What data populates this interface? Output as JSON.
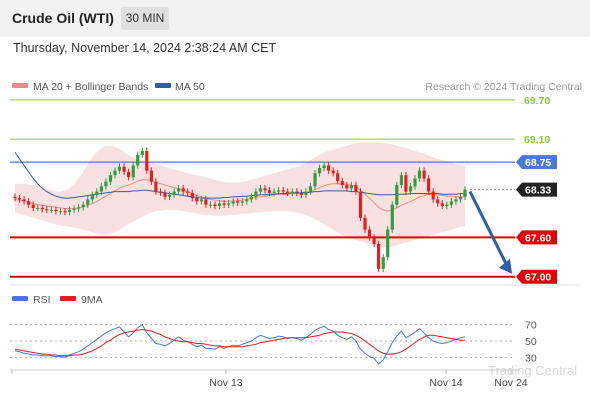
{
  "header": {
    "title": "Crude Oil (WTI)",
    "timeframe": "30 MIN",
    "datetime": "Thursday, November 14, 2024 2:38:24 AM CET"
  },
  "legend": {
    "ma20_label": "MA 20 + Bollinger Bands",
    "ma50_label": "MA 50",
    "credit": "Research © 2024 Trading Central",
    "ma20_color": "#f08a8a",
    "ma50_color": "#2f5fa6"
  },
  "rsi_legend": {
    "rsi_label": "RSI",
    "ma9_label": "9MA",
    "rsi_color": "#4a78d8",
    "ma9_color": "#e02020"
  },
  "watermark": "Trading Central",
  "chart_data": [
    {
      "type": "candlestick",
      "ylim": [
        66.95,
        69.82
      ],
      "grid": false,
      "levels": [
        {
          "value": 69.7,
          "label": "69.70",
          "style": "green-line"
        },
        {
          "value": 69.1,
          "label": "69.10",
          "style": "green-line"
        },
        {
          "value": 68.75,
          "label": "68.75",
          "style": "blue-line-badge",
          "color": "#4a78d8"
        },
        {
          "value": 68.33,
          "label": "68.33",
          "style": "current-price",
          "color": "#222222"
        },
        {
          "value": 67.6,
          "label": "67.60",
          "style": "red-line-badge",
          "color": "#e00000"
        },
        {
          "value": 67.0,
          "label": "67.00",
          "style": "red-line-badge",
          "color": "#e00000"
        }
      ],
      "x_tick_labels": [
        "Nov 13",
        "Nov 14",
        "Nov 24"
      ],
      "closes": [
        68.2,
        68.18,
        68.15,
        68.1,
        68.05,
        68.05,
        68.03,
        68.02,
        68.02,
        68.0,
        68.0,
        67.99,
        68.02,
        68.04,
        68.06,
        68.1,
        68.18,
        68.25,
        68.3,
        68.38,
        68.45,
        68.55,
        68.62,
        68.68,
        68.6,
        68.52,
        68.7,
        68.86,
        68.92,
        68.62,
        68.45,
        68.3,
        68.28,
        68.22,
        68.25,
        68.3,
        68.35,
        68.3,
        68.28,
        68.2,
        68.15,
        68.18,
        68.1,
        68.1,
        68.08,
        68.12,
        68.1,
        68.12,
        68.15,
        68.13,
        68.15,
        68.18,
        68.22,
        68.3,
        68.35,
        68.32,
        68.28,
        68.3,
        68.32,
        68.3,
        68.28,
        68.3,
        68.28,
        68.25,
        68.3,
        68.38,
        68.58,
        68.66,
        68.7,
        68.62,
        68.58,
        68.46,
        68.4,
        68.35,
        68.4,
        68.3,
        67.9,
        67.72,
        67.6,
        67.5,
        67.12,
        67.3,
        67.72,
        68.1,
        68.4,
        68.55,
        68.3,
        68.38,
        68.5,
        68.62,
        68.5,
        68.3,
        68.18,
        68.12,
        68.08,
        68.1,
        68.15,
        68.18,
        68.22,
        68.33
      ],
      "ma20": [
        68.18,
        68.17,
        68.16,
        68.14,
        68.12,
        68.1,
        68.09,
        68.08,
        68.07,
        68.06,
        68.05,
        68.04,
        68.04,
        68.04,
        68.05,
        68.07,
        68.09,
        68.12,
        68.15,
        68.19,
        68.23,
        68.27,
        68.31,
        68.35,
        68.38,
        68.4,
        68.43,
        68.46,
        68.48,
        68.48,
        68.46,
        68.44,
        68.42,
        68.4,
        68.38,
        68.36,
        68.34,
        68.32,
        68.3,
        68.27,
        68.24,
        68.22,
        68.2,
        68.18,
        68.17,
        68.16,
        68.15,
        68.15,
        68.16,
        68.16,
        68.17,
        68.18,
        68.2,
        68.21,
        68.22,
        68.23,
        68.24,
        68.25,
        68.26,
        68.26,
        68.26,
        68.27,
        68.27,
        68.27,
        68.28,
        68.3,
        68.33,
        68.36,
        68.39,
        68.41,
        68.42,
        68.42,
        68.42,
        68.41,
        68.4,
        68.37,
        68.32,
        68.26,
        68.2,
        68.13,
        68.06,
        68.02,
        68.0,
        68.02,
        68.05,
        68.09,
        68.12,
        68.15,
        68.18,
        68.22,
        68.24,
        68.26,
        68.26,
        68.25,
        68.24,
        68.23,
        68.23,
        68.22,
        68.22,
        68.22
      ],
      "bb_upper": [
        68.42,
        68.42,
        68.42,
        68.41,
        68.4,
        68.38,
        68.36,
        68.34,
        68.32,
        68.3,
        68.3,
        68.32,
        68.36,
        68.42,
        68.5,
        68.6,
        68.72,
        68.82,
        68.9,
        68.96,
        69.0,
        69.0,
        68.98,
        68.95,
        68.9,
        68.85,
        68.82,
        68.8,
        68.78,
        68.76,
        68.74,
        68.72,
        68.7,
        68.68,
        68.66,
        68.64,
        68.62,
        68.6,
        68.58,
        68.56,
        68.55,
        68.54,
        68.52,
        68.5,
        68.48,
        68.46,
        68.45,
        68.44,
        68.44,
        68.44,
        68.45,
        68.46,
        68.48,
        68.5,
        68.52,
        68.54,
        68.56,
        68.58,
        68.6,
        68.62,
        68.64,
        68.66,
        68.68,
        68.7,
        68.74,
        68.78,
        68.82,
        68.86,
        68.9,
        68.92,
        68.94,
        68.96,
        68.98,
        69.0,
        69.02,
        69.04,
        69.05,
        69.05,
        69.05,
        69.05,
        69.05,
        69.04,
        69.03,
        69.02,
        69.0,
        68.98,
        68.96,
        68.94,
        68.92,
        68.9,
        68.88,
        68.85,
        68.82,
        68.8,
        68.78,
        68.76,
        68.74,
        68.72,
        68.7,
        68.7
      ],
      "bb_lower": [
        67.98,
        67.96,
        67.94,
        67.92,
        67.9,
        67.88,
        67.86,
        67.84,
        67.82,
        67.8,
        67.78,
        67.77,
        67.76,
        67.75,
        67.74,
        67.72,
        67.7,
        67.68,
        67.66,
        67.65,
        67.65,
        67.66,
        67.68,
        67.72,
        67.76,
        67.8,
        67.84,
        67.88,
        67.92,
        67.95,
        67.98,
        68.0,
        68.01,
        68.02,
        68.02,
        68.02,
        68.01,
        68.0,
        67.99,
        67.98,
        67.96,
        67.95,
        67.94,
        67.94,
        67.93,
        67.93,
        67.93,
        67.94,
        67.94,
        67.95,
        67.96,
        67.96,
        67.97,
        67.98,
        67.98,
        67.99,
        67.99,
        68.0,
        68.0,
        68.0,
        68.0,
        67.99,
        67.98,
        67.96,
        67.94,
        67.92,
        67.88,
        67.84,
        67.8,
        67.76,
        67.72,
        67.68,
        67.64,
        67.6,
        67.58,
        67.56,
        67.54,
        67.52,
        67.5,
        67.48,
        67.46,
        67.45,
        67.45,
        67.46,
        67.48,
        67.5,
        67.52,
        67.54,
        67.56,
        67.58,
        67.6,
        67.62,
        67.64,
        67.66,
        67.68,
        67.7,
        67.72,
        67.74,
        67.76,
        67.78
      ],
      "ma50": [
        68.9,
        68.8,
        68.7,
        68.6,
        68.5,
        68.42,
        68.35,
        68.3,
        68.26,
        68.23,
        68.21,
        68.2,
        68.2,
        68.21,
        68.22,
        68.23,
        68.24,
        68.25,
        68.26,
        68.27,
        68.28,
        68.29,
        68.3,
        68.3,
        68.3,
        68.3,
        68.31,
        68.31,
        68.32,
        68.32,
        68.31,
        68.3,
        68.29,
        68.28,
        68.27,
        68.26,
        68.25,
        68.24,
        68.23,
        68.22,
        68.21,
        68.2,
        68.2,
        68.2,
        68.2,
        68.2,
        68.21,
        68.21,
        68.22,
        68.22,
        68.23,
        68.23,
        68.24,
        68.24,
        68.25,
        68.25,
        68.26,
        68.26,
        68.27,
        68.27,
        68.27,
        68.28,
        68.28,
        68.28,
        68.29,
        68.29,
        68.3,
        68.3,
        68.31,
        68.31,
        68.31,
        68.31,
        68.31,
        68.31,
        68.3,
        68.3,
        68.29,
        68.28,
        68.27,
        68.26,
        68.25,
        68.25,
        68.25,
        68.25,
        68.26,
        68.26,
        68.26,
        68.27,
        68.27,
        68.27,
        68.27,
        68.27,
        68.27,
        68.27,
        68.26,
        68.26,
        68.26,
        68.26,
        68.27,
        68.27
      ],
      "forecast": {
        "from": 68.33,
        "to": 67.0
      }
    },
    {
      "type": "line",
      "ylim": [
        22,
        78
      ],
      "y_tick_labels": [
        "70",
        "50",
        "30"
      ],
      "levels": [
        70,
        50,
        30
      ],
      "series": [
        {
          "name": "RSI",
          "color": "#4a78d8",
          "values": [
            38,
            37,
            35,
            34,
            33,
            33,
            32,
            32,
            32,
            31,
            31,
            30,
            33,
            35,
            37,
            40,
            44,
            48,
            52,
            56,
            60,
            63,
            65,
            67,
            61,
            55,
            60,
            66,
            70,
            60,
            53,
            47,
            46,
            44,
            47,
            51,
            55,
            51,
            49,
            46,
            43,
            45,
            41,
            41,
            40,
            43,
            41,
            43,
            45,
            44,
            46,
            48,
            50,
            54,
            57,
            55,
            53,
            54,
            56,
            55,
            53,
            54,
            53,
            51,
            54,
            58,
            63,
            66,
            68,
            64,
            62,
            57,
            54,
            52,
            55,
            50,
            40,
            35,
            31,
            29,
            22,
            27,
            37,
            48,
            56,
            62,
            54,
            57,
            61,
            65,
            60,
            54,
            50,
            48,
            47,
            48,
            50,
            52,
            54,
            55
          ]
        },
        {
          "name": "9MA",
          "color": "#e02020",
          "values": [
            40,
            39,
            38,
            37,
            36,
            35,
            34,
            34,
            33,
            33,
            32,
            32,
            32,
            33,
            33,
            34,
            36,
            38,
            41,
            44,
            48,
            51,
            55,
            58,
            60,
            61,
            62,
            63,
            64,
            63,
            62,
            60,
            58,
            55,
            53,
            51,
            50,
            49,
            49,
            48,
            47,
            47,
            46,
            45,
            44,
            44,
            43,
            43,
            43,
            43,
            43,
            44,
            45,
            46,
            48,
            49,
            50,
            51,
            52,
            53,
            54,
            54,
            54,
            54,
            54,
            55,
            56,
            57,
            59,
            60,
            61,
            61,
            61,
            60,
            59,
            57,
            54,
            50,
            46,
            42,
            38,
            35,
            34,
            34,
            35,
            37,
            40,
            44,
            48,
            52,
            55,
            57,
            57,
            56,
            55,
            54,
            53,
            52,
            51,
            51
          ]
        }
      ]
    }
  ]
}
